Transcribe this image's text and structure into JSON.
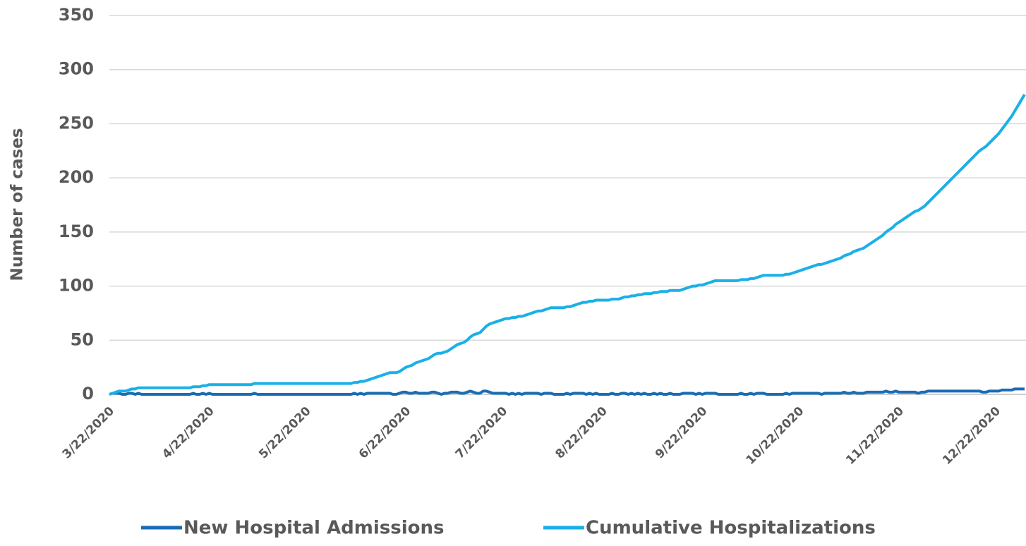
{
  "chart_data": {
    "type": "line",
    "y_label": "Number of cases",
    "ylim": [
      0,
      350
    ],
    "yticks": [
      0,
      50,
      100,
      150,
      200,
      250,
      300,
      350
    ],
    "grid": true,
    "legend": "bottom",
    "categories": [
      "3/22/2020",
      null,
      null,
      null,
      null,
      null,
      null,
      null,
      null,
      null,
      null,
      null,
      null,
      null,
      null,
      null,
      null,
      null,
      null,
      null,
      null,
      null,
      null,
      null,
      null,
      null,
      null,
      null,
      null,
      null,
      null,
      "4/22/2020",
      null,
      null,
      null,
      null,
      null,
      null,
      null,
      null,
      null,
      null,
      null,
      null,
      null,
      null,
      null,
      null,
      null,
      null,
      null,
      null,
      null,
      null,
      null,
      null,
      null,
      null,
      null,
      null,
      null,
      "5/22/2020",
      null,
      null,
      null,
      null,
      null,
      null,
      null,
      null,
      null,
      null,
      null,
      null,
      null,
      null,
      null,
      null,
      null,
      null,
      null,
      null,
      null,
      null,
      null,
      null,
      null,
      null,
      null,
      null,
      null,
      null,
      "6/22/2020",
      null,
      null,
      null,
      null,
      null,
      null,
      null,
      null,
      null,
      null,
      null,
      null,
      null,
      null,
      null,
      null,
      null,
      null,
      null,
      null,
      null,
      null,
      null,
      null,
      null,
      null,
      null,
      null,
      null,
      "7/22/2020",
      null,
      null,
      null,
      null,
      null,
      null,
      null,
      null,
      null,
      null,
      null,
      null,
      null,
      null,
      null,
      null,
      null,
      null,
      null,
      null,
      null,
      null,
      null,
      null,
      null,
      null,
      null,
      null,
      null,
      null,
      "8/22/2020",
      null,
      null,
      null,
      null,
      null,
      null,
      null,
      null,
      null,
      null,
      null,
      null,
      null,
      null,
      null,
      null,
      null,
      null,
      null,
      null,
      null,
      null,
      null,
      null,
      null,
      null,
      null,
      null,
      null,
      null,
      "9/22/2020",
      null,
      null,
      null,
      null,
      null,
      null,
      null,
      null,
      null,
      null,
      null,
      null,
      null,
      null,
      null,
      null,
      null,
      null,
      null,
      null,
      null,
      null,
      null,
      null,
      null,
      null,
      null,
      null,
      null,
      "10/22/2020",
      null,
      null,
      null,
      null,
      null,
      null,
      null,
      null,
      null,
      null,
      null,
      null,
      null,
      null,
      null,
      null,
      null,
      null,
      null,
      null,
      null,
      null,
      null,
      null,
      null,
      null,
      null,
      null,
      null,
      null,
      "11/22/2020",
      null,
      null,
      null,
      null,
      null,
      null,
      null,
      null,
      null,
      null,
      null,
      null,
      null,
      null,
      null,
      null,
      null,
      null,
      null,
      null,
      null,
      null,
      null,
      null,
      null,
      null,
      null,
      null,
      null,
      "12/22/2020",
      null,
      null,
      null,
      null,
      null,
      null,
      null,
      null,
      null
    ],
    "series": [
      {
        "name": "New Hospital Admissions",
        "color": "#1a6db5",
        "values": [
          0,
          1,
          1,
          1,
          0,
          0,
          1,
          1,
          0,
          1,
          0,
          0,
          0,
          0,
          0,
          0,
          0,
          0,
          0,
          0,
          0,
          0,
          0,
          0,
          0,
          0,
          1,
          0,
          0,
          1,
          0,
          1,
          0,
          0,
          0,
          0,
          0,
          0,
          0,
          0,
          0,
          0,
          0,
          0,
          0,
          1,
          0,
          0,
          0,
          0,
          0,
          0,
          0,
          0,
          0,
          0,
          0,
          0,
          0,
          0,
          0,
          0,
          0,
          0,
          0,
          0,
          0,
          0,
          0,
          0,
          0,
          0,
          0,
          0,
          0,
          0,
          1,
          0,
          1,
          0,
          1,
          1,
          1,
          1,
          1,
          1,
          1,
          1,
          0,
          0,
          1,
          2,
          2,
          1,
          1,
          2,
          1,
          1,
          1,
          1,
          2,
          2,
          1,
          0,
          1,
          1,
          2,
          2,
          2,
          1,
          1,
          2,
          3,
          2,
          1,
          1,
          3,
          3,
          2,
          1,
          1,
          1,
          1,
          1,
          0,
          1,
          0,
          1,
          0,
          1,
          1,
          1,
          1,
          1,
          0,
          1,
          1,
          1,
          0,
          0,
          0,
          0,
          1,
          0,
          1,
          1,
          1,
          1,
          0,
          1,
          0,
          1,
          0,
          0,
          0,
          0,
          1,
          0,
          0,
          1,
          1,
          0,
          1,
          0,
          1,
          0,
          1,
          0,
          0,
          1,
          0,
          1,
          0,
          0,
          1,
          0,
          0,
          0,
          1,
          1,
          1,
          1,
          0,
          1,
          0,
          1,
          1,
          1,
          1,
          0,
          0,
          0,
          0,
          0,
          0,
          0,
          1,
          0,
          0,
          1,
          0,
          1,
          1,
          1,
          0,
          0,
          0,
          0,
          0,
          0,
          1,
          0,
          1,
          1,
          1,
          1,
          1,
          1,
          1,
          1,
          1,
          0,
          1,
          1,
          1,
          1,
          1,
          1,
          2,
          1,
          1,
          2,
          1,
          1,
          1,
          2,
          2,
          2,
          2,
          2,
          2,
          3,
          2,
          2,
          3,
          2,
          2,
          2,
          2,
          2,
          2,
          1,
          2,
          2,
          3,
          3,
          3,
          3,
          3,
          3,
          3,
          3,
          3,
          3,
          3,
          3,
          3,
          3,
          3,
          3,
          3,
          2,
          2,
          3,
          3,
          3,
          3,
          4,
          4,
          4,
          4,
          5,
          5,
          5,
          5
        ]
      },
      {
        "name": "Cumulative Hospitalizations",
        "color": "#1ab0e8",
        "values": [
          0,
          1,
          2,
          3,
          3,
          3,
          4,
          5,
          5,
          6,
          6,
          6,
          6,
          6,
          6,
          6,
          6,
          6,
          6,
          6,
          6,
          6,
          6,
          6,
          6,
          6,
          7,
          7,
          7,
          8,
          8,
          9,
          9,
          9,
          9,
          9,
          9,
          9,
          9,
          9,
          9,
          9,
          9,
          9,
          9,
          10,
          10,
          10,
          10,
          10,
          10,
          10,
          10,
          10,
          10,
          10,
          10,
          10,
          10,
          10,
          10,
          10,
          10,
          10,
          10,
          10,
          10,
          10,
          10,
          10,
          10,
          10,
          10,
          10,
          10,
          10,
          11,
          11,
          12,
          12,
          13,
          14,
          15,
          16,
          17,
          18,
          19,
          20,
          20,
          20,
          21,
          23,
          25,
          26,
          27,
          29,
          30,
          31,
          32,
          33,
          35,
          37,
          38,
          38,
          39,
          40,
          42,
          44,
          46,
          47,
          48,
          50,
          53,
          55,
          56,
          57,
          60,
          63,
          65,
          66,
          67,
          68,
          69,
          70,
          70,
          71,
          71,
          72,
          72,
          73,
          74,
          75,
          76,
          77,
          77,
          78,
          79,
          80,
          80,
          80,
          80,
          80,
          81,
          81,
          82,
          83,
          84,
          85,
          85,
          86,
          86,
          87,
          87,
          87,
          87,
          87,
          88,
          88,
          88,
          89,
          90,
          90,
          91,
          91,
          92,
          92,
          93,
          93,
          93,
          94,
          94,
          95,
          95,
          95,
          96,
          96,
          96,
          96,
          97,
          98,
          99,
          100,
          100,
          101,
          101,
          102,
          103,
          104,
          105,
          105,
          105,
          105,
          105,
          105,
          105,
          105,
          106,
          106,
          106,
          107,
          107,
          108,
          109,
          110,
          110,
          110,
          110,
          110,
          110,
          110,
          111,
          111,
          112,
          113,
          114,
          115,
          116,
          117,
          118,
          119,
          120,
          120,
          121,
          122,
          123,
          124,
          125,
          126,
          128,
          129,
          130,
          132,
          133,
          134,
          135,
          137,
          139,
          141,
          143,
          145,
          147,
          150,
          152,
          154,
          157,
          159,
          161,
          163,
          165,
          167,
          169,
          170,
          172,
          174,
          177,
          180,
          183,
          186,
          189,
          192,
          195,
          198,
          201,
          204,
          207,
          210,
          213,
          216,
          219,
          222,
          225,
          227,
          229,
          232,
          235,
          238,
          241,
          245,
          249,
          253,
          257,
          262,
          267,
          272,
          277
        ]
      }
    ]
  }
}
